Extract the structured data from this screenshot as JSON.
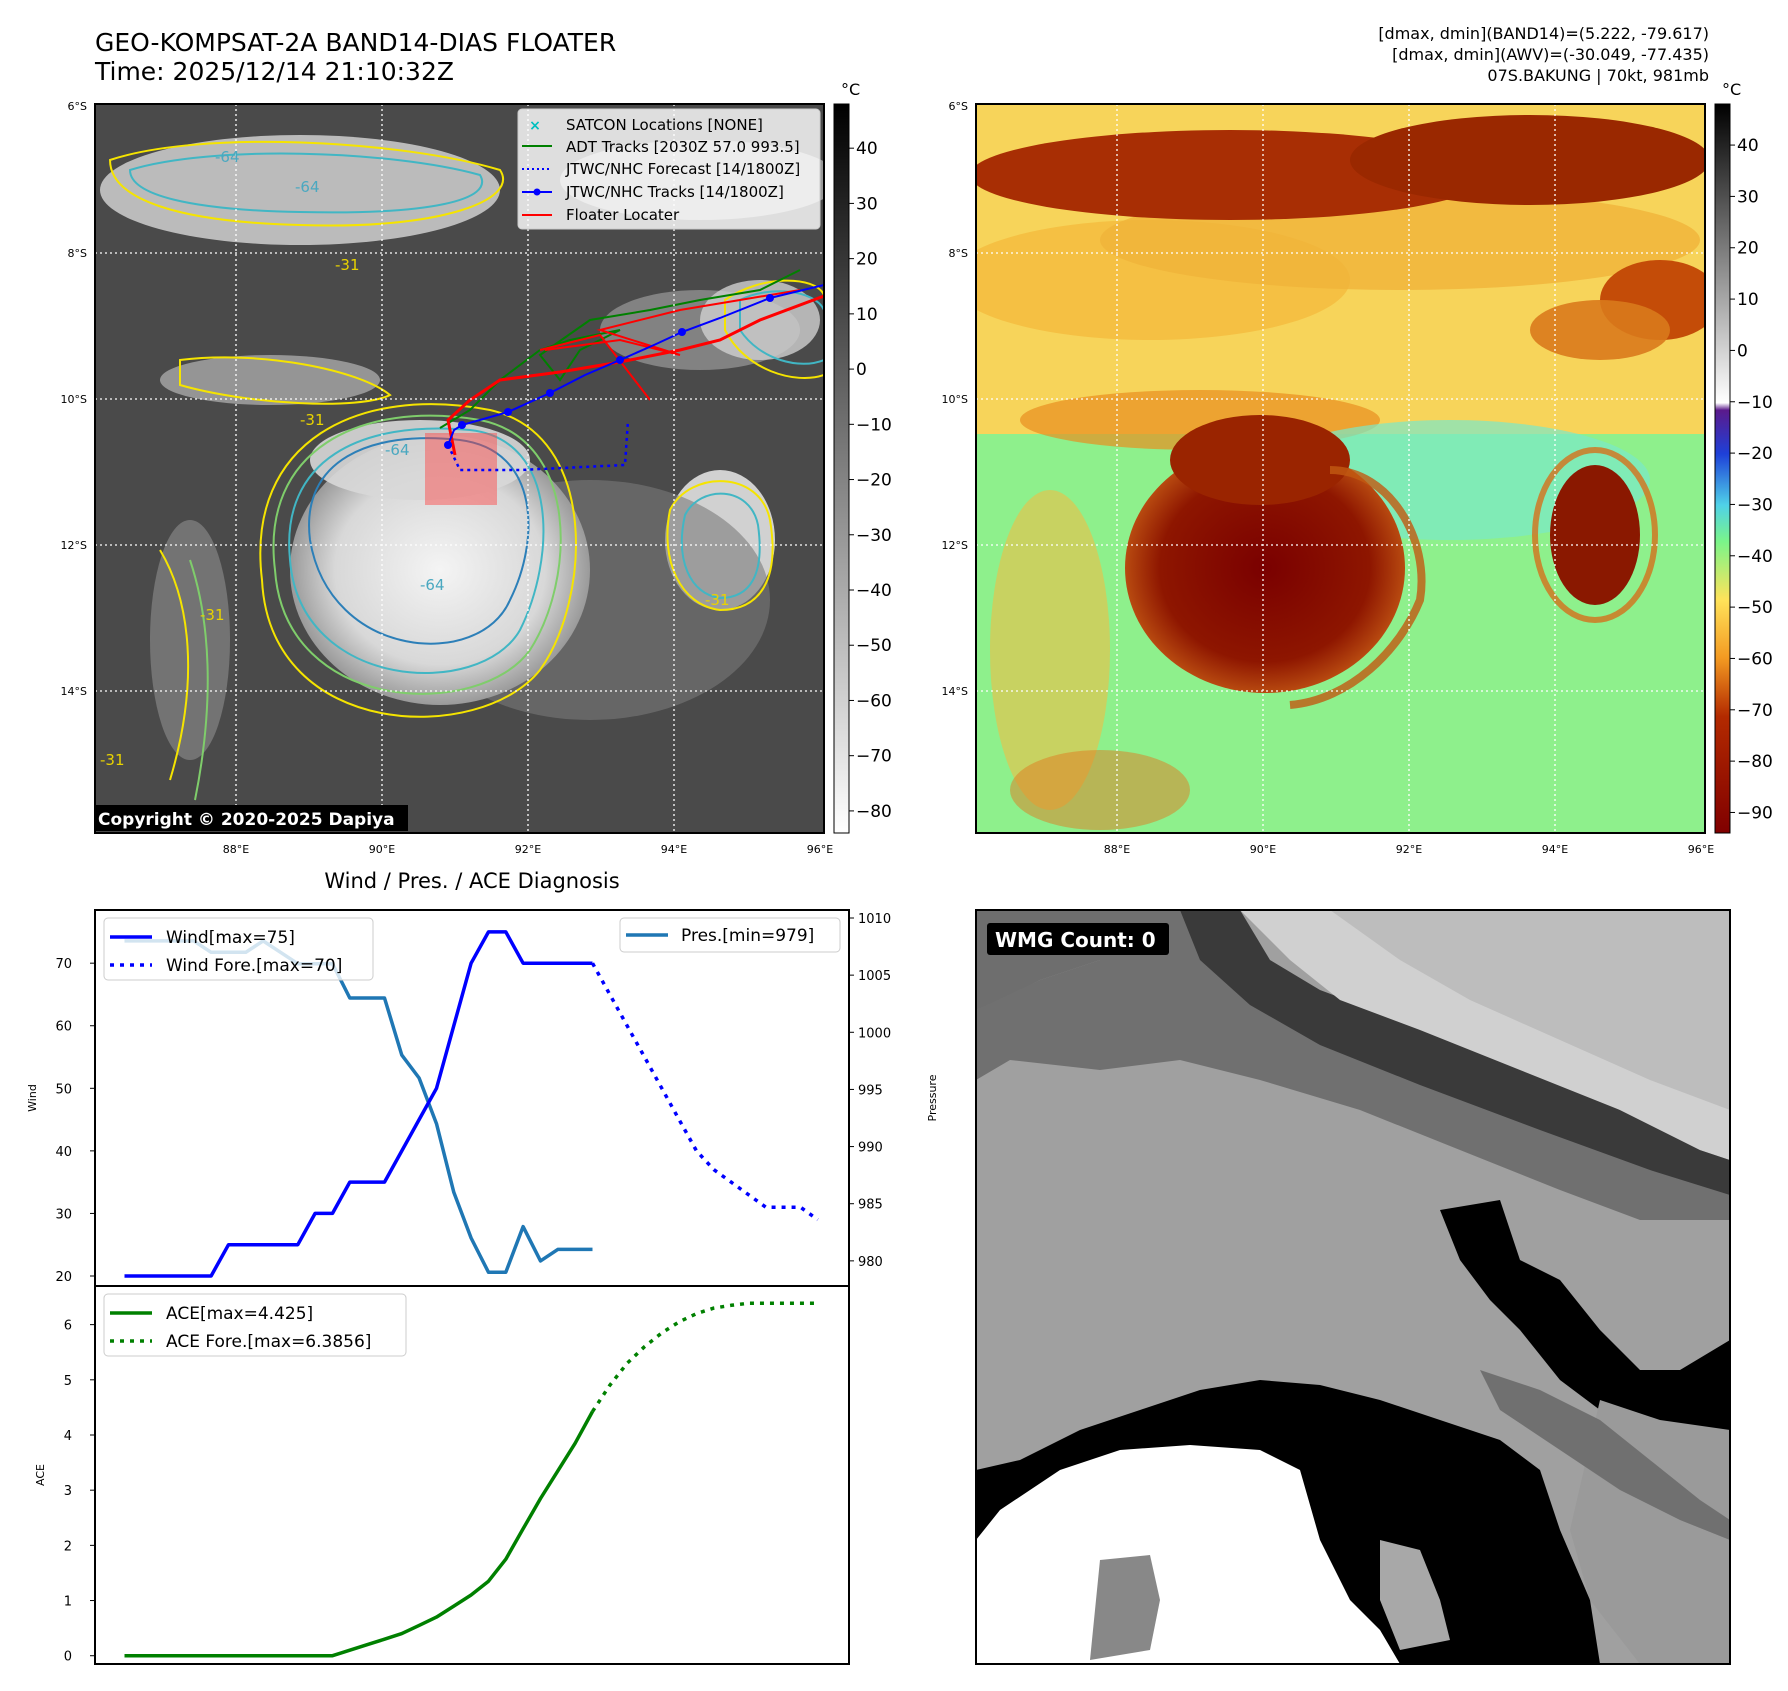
{
  "header": {
    "title_line1": "GEO-KOMPSAT-2A BAND14-DIAS FLOATER",
    "title_line2": "Time: 2025/12/14 21:10:32Z",
    "stats_line1": "[dmax, dmin](BAND14)=(5.222, -79.617)",
    "stats_line2": "[dmax, dmin](AWV)=(-30.049, -77.435)",
    "stats_line3": "07S.BAKUNG | 70kt, 981mb"
  },
  "map": {
    "lat_labels": [
      "6°S",
      "8°S",
      "10°S",
      "12°S",
      "14°S"
    ],
    "lon_labels": [
      "88°E",
      "90°E",
      "92°E",
      "94°E",
      "96°E"
    ],
    "contour_labels": [
      "-64",
      "-64",
      "-31",
      "-31",
      "-64",
      "-64",
      "-31",
      "-31",
      "-31"
    ],
    "copyright": "Copyright © 2020-2025 Dapiya",
    "legend": [
      {
        "label": "SATCON Locations [NONE]",
        "color": "#00bfbf",
        "style": "x"
      },
      {
        "label": "ADT Tracks [2030Z 57.0 993.5]",
        "color": "#008000",
        "style": "solid"
      },
      {
        "label": "JTWC/NHC Forecast [14/1800Z]",
        "color": "#0000ff",
        "style": "dotted"
      },
      {
        "label": "JTWC/NHC Tracks [14/1800Z]",
        "color": "#0000ff",
        "style": "marker"
      },
      {
        "label": "Floater Locater",
        "color": "#ff0000",
        "style": "solid"
      }
    ]
  },
  "colorbar_gray": {
    "unit": "°C",
    "ticks": [
      "40",
      "30",
      "20",
      "10",
      "0",
      "−10",
      "−20",
      "−30",
      "−40",
      "−50",
      "−60",
      "−70",
      "−80"
    ]
  },
  "colorbar_color": {
    "unit": "°C",
    "ticks": [
      "40",
      "30",
      "20",
      "10",
      "0",
      "−10",
      "−20",
      "−30",
      "−40",
      "−50",
      "−60",
      "−70",
      "−80",
      "−90"
    ]
  },
  "wmg": {
    "label": "WMG Count: 0"
  },
  "chart_data": [
    {
      "type": "line",
      "title": "Wind / Pres. / ACE Diagnosis",
      "ylabel": "Wind",
      "ylabel_right": "Pressure",
      "ylim": [
        18.4,
        78.5
      ],
      "ylim_right": [
        977.8,
        1010.7
      ],
      "yticks": [
        "20",
        "30",
        "40",
        "50",
        "60",
        "70"
      ],
      "yticks_right": [
        "980",
        "985",
        "990",
        "995",
        "1000",
        "1005",
        "1010"
      ],
      "series": [
        {
          "name": "Wind[max=75]",
          "color": "#0000ff",
          "style": "solid",
          "x": [
            0,
            1,
            2,
            3,
            4,
            5,
            6,
            7,
            8,
            9,
            10,
            11,
            12,
            13,
            14,
            15,
            16,
            17,
            18,
            19,
            20,
            21,
            22,
            23,
            24,
            25,
            26,
            27
          ],
          "values": [
            20,
            20,
            20,
            20,
            20,
            20,
            25,
            25,
            25,
            25,
            25,
            30,
            30,
            35,
            35,
            35,
            40,
            45,
            50,
            60,
            70,
            75,
            75,
            70,
            70,
            70,
            70,
            70
          ]
        },
        {
          "name": "Wind Fore.[max=70]",
          "color": "#0000ff",
          "style": "dotted",
          "x": [
            27,
            28,
            29,
            30,
            31,
            32,
            33,
            34,
            35,
            36,
            37,
            38,
            39,
            40
          ],
          "values": [
            70,
            65,
            60,
            55,
            50,
            45,
            40,
            37,
            35,
            33,
            31,
            31,
            31,
            29
          ]
        },
        {
          "name": "Pres.[min=979]",
          "color": "#1f77b4",
          "style": "solid",
          "axis": "right",
          "x": [
            0,
            1,
            2,
            3,
            4,
            5,
            6,
            7,
            8,
            9,
            10,
            11,
            12,
            13,
            14,
            15,
            16,
            17,
            18,
            19,
            20,
            21,
            22,
            23,
            24,
            25,
            26,
            27
          ],
          "values": [
            1008,
            1008,
            1008,
            1008,
            1008,
            1007,
            1007,
            1007,
            1008,
            1007,
            1006,
            1006,
            1006,
            1003,
            1003,
            1003,
            998,
            996,
            992,
            986,
            982,
            979,
            979,
            983,
            980,
            981,
            981,
            981
          ]
        }
      ]
    },
    {
      "type": "line",
      "ylabel": "ACE",
      "ylim": [
        -0.15,
        6.7
      ],
      "yticks": [
        "0",
        "1",
        "2",
        "3",
        "4",
        "5",
        "6"
      ],
      "series": [
        {
          "name": "ACE[max=4.425]",
          "color": "#008000",
          "style": "solid",
          "x": [
            0,
            2,
            4,
            6,
            8,
            10,
            12,
            13,
            14,
            15,
            16,
            17,
            18,
            19,
            20,
            21,
            22,
            23,
            24,
            25,
            26,
            27
          ],
          "values": [
            0,
            0,
            0,
            0,
            0,
            0,
            0,
            0.1,
            0.2,
            0.3,
            0.4,
            0.55,
            0.7,
            0.9,
            1.1,
            1.35,
            1.75,
            2.3,
            2.85,
            3.35,
            3.85,
            4.425
          ]
        },
        {
          "name": "ACE Fore.[max=6.3856]",
          "color": "#008000",
          "style": "dotted",
          "x": [
            27,
            28,
            29,
            30,
            31,
            32,
            33,
            34,
            35,
            36,
            37,
            38,
            39,
            40
          ],
          "values": [
            4.425,
            4.9,
            5.3,
            5.6,
            5.85,
            6.05,
            6.2,
            6.3,
            6.35,
            6.3856,
            6.3856,
            6.3856,
            6.3856,
            6.3856
          ]
        }
      ]
    }
  ]
}
